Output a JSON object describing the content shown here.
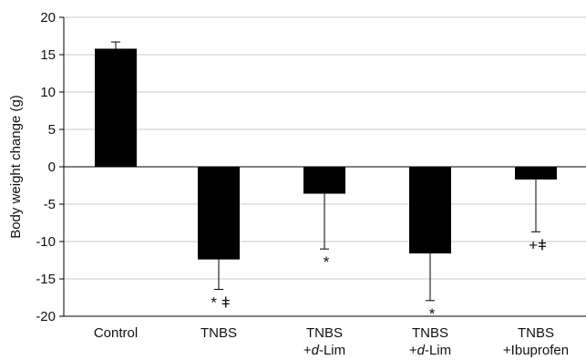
{
  "chart_data": {
    "type": "bar",
    "title": "",
    "xlabel": "",
    "ylabel": "Body weight change (g)",
    "ylim": [
      -20,
      20
    ],
    "yticks": [
      20,
      15,
      10,
      5,
      0,
      -5,
      -10,
      -15,
      -20
    ],
    "grid": true,
    "legend": "none",
    "bar_color": "#000000",
    "grid_color": "#c8c8c8",
    "categories": [
      {
        "line1": "Control",
        "line2": "",
        "line2_italic": "",
        "line2_suffix": ""
      },
      {
        "line1": "TNBS",
        "line2": "",
        "line2_italic": "",
        "line2_suffix": ""
      },
      {
        "line1": "TNBS",
        "line2": "+",
        "line2_italic": "d",
        "line2_suffix": "-Lim"
      },
      {
        "line1": "TNBS",
        "line2": "+",
        "line2_italic": "d",
        "line2_suffix": "-Lim"
      },
      {
        "line1": "TNBS",
        "line2": "+Ibuprofen",
        "line2_italic": "",
        "line2_suffix": ""
      }
    ],
    "values": [
      15.8,
      -12.4,
      -3.6,
      -11.6,
      -1.7
    ],
    "errors": [
      0.9,
      4.0,
      7.4,
      6.3,
      7.0
    ],
    "annotations": [
      "",
      "* ǂ",
      "*",
      "*",
      "+ǂ"
    ]
  }
}
